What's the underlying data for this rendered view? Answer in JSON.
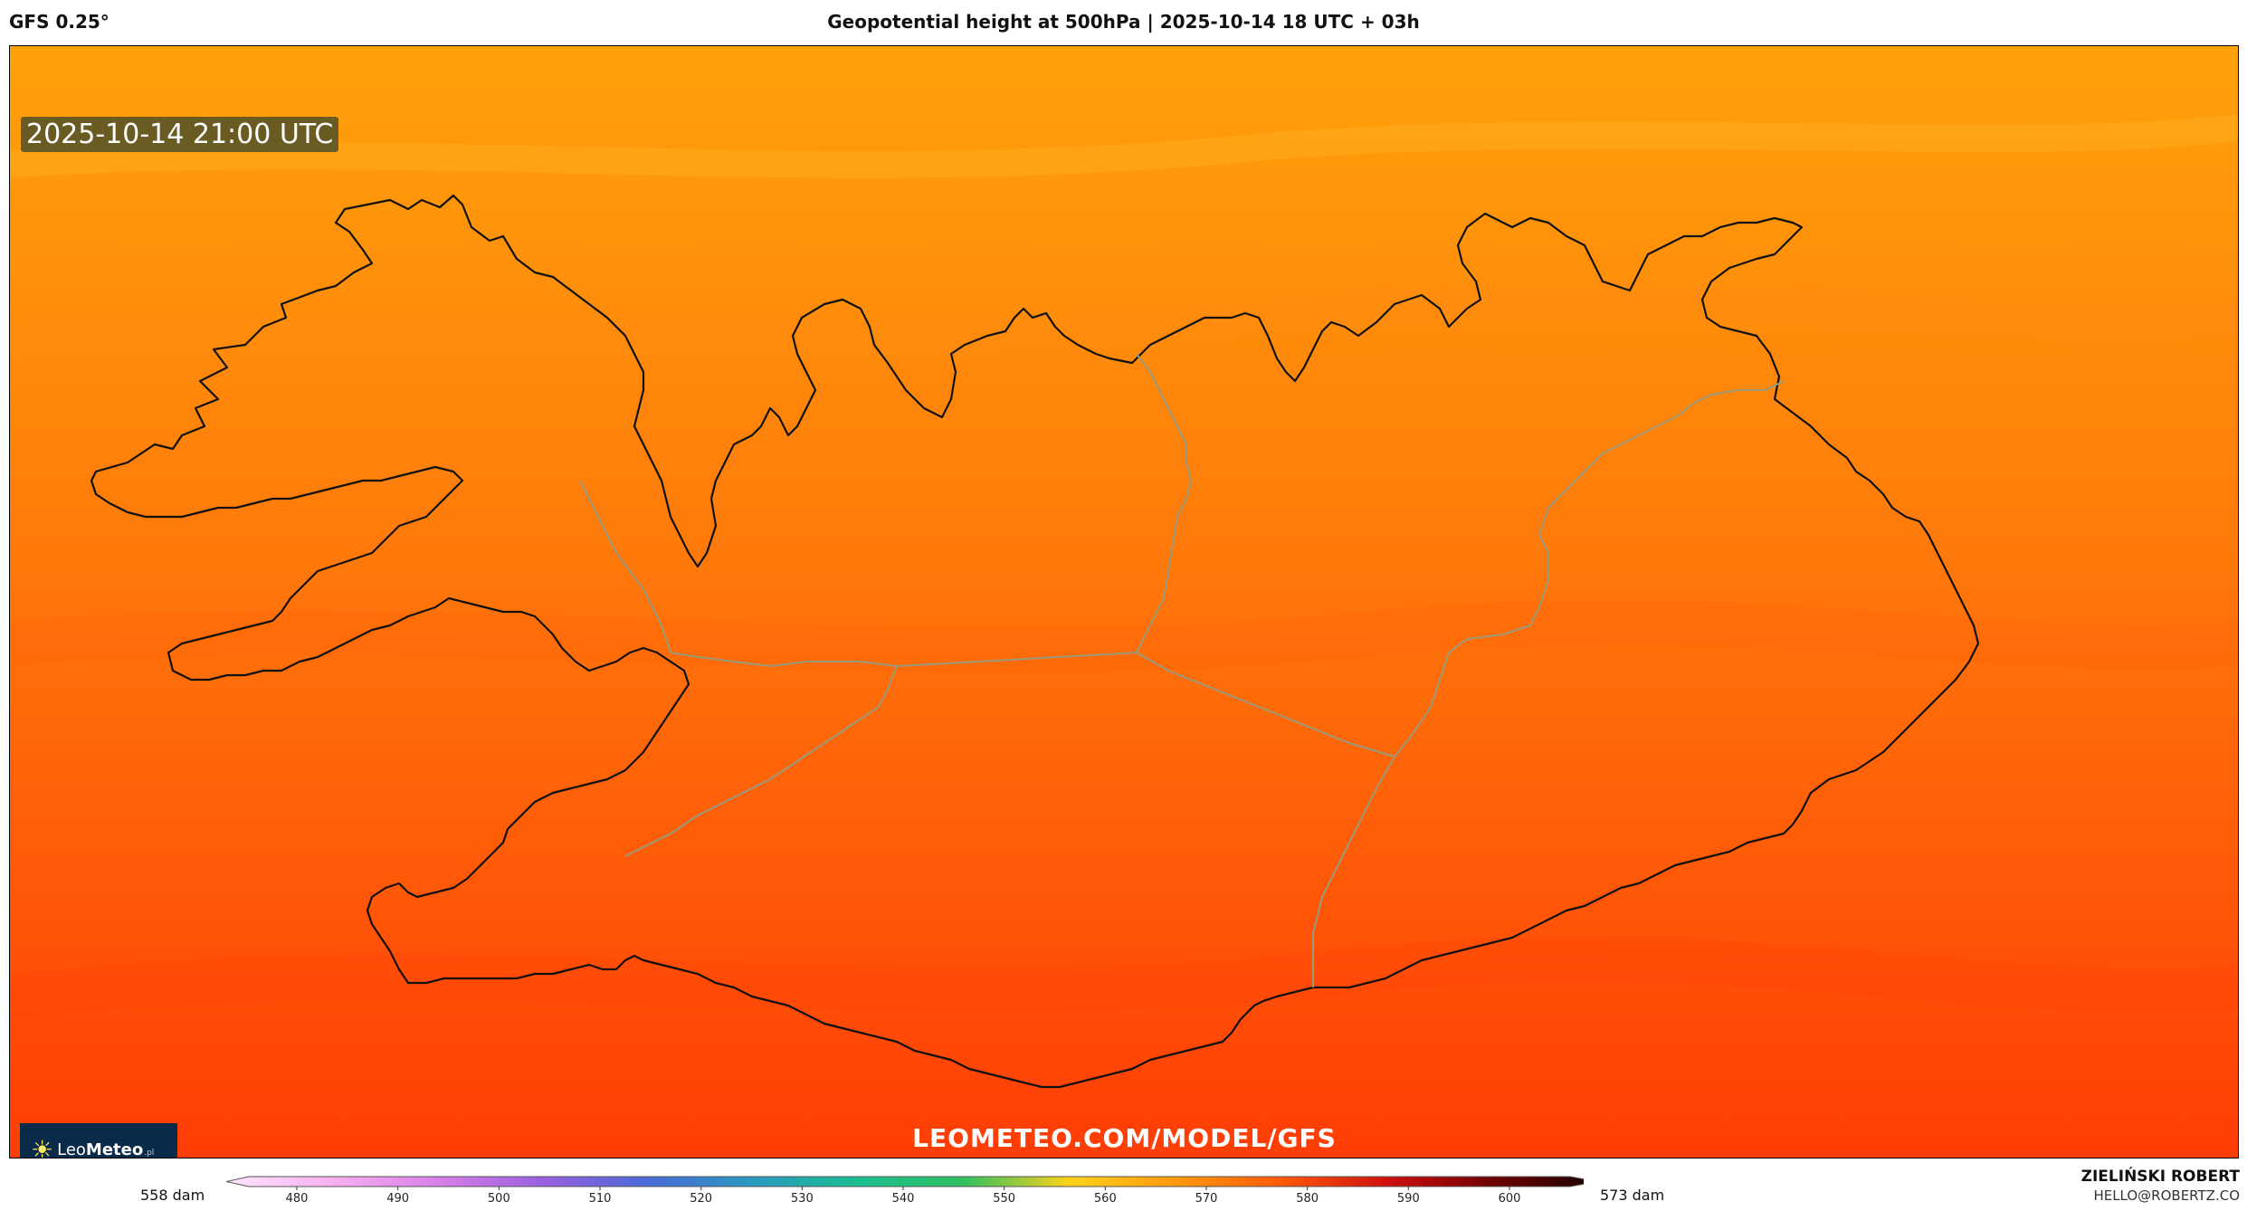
{
  "header": {
    "model": "GFS 0.25°",
    "title": "Geopotential height at 500hPa | 2025-10-14 18 UTC + 03h"
  },
  "map": {
    "valid_time": "2025-10-14 21:00 UTC",
    "watermark": "LEOMETEO.COM/MODEL/GFS",
    "logo": {
      "prefix": "Leo",
      "name": "Meteo",
      "suffix": ".pl"
    },
    "colors": {
      "north": "#ffa20a",
      "mid": "#ff7a0a",
      "south": "#ff3d06",
      "coast": "#111111",
      "borders": "#9a9a7a"
    }
  },
  "colorbar": {
    "min_label": "558 dam",
    "max_label": "573 dam",
    "ticks": [
      "480",
      "490",
      "500",
      "510",
      "520",
      "530",
      "540",
      "550",
      "560",
      "570",
      "580",
      "590",
      "600"
    ],
    "stops": [
      "#ffe6ff",
      "#f8b0f0",
      "#d880e8",
      "#9a60e0",
      "#4a6ad8",
      "#2a9ac0",
      "#1abf90",
      "#30c060",
      "#ffd21a",
      "#ff9a10",
      "#ff5a08",
      "#d01010",
      "#700000",
      "#1a0000"
    ]
  },
  "author": {
    "name": "ZIELIŃSKI ROBERT",
    "email": "HELLO@ROBERTZ.CO"
  }
}
